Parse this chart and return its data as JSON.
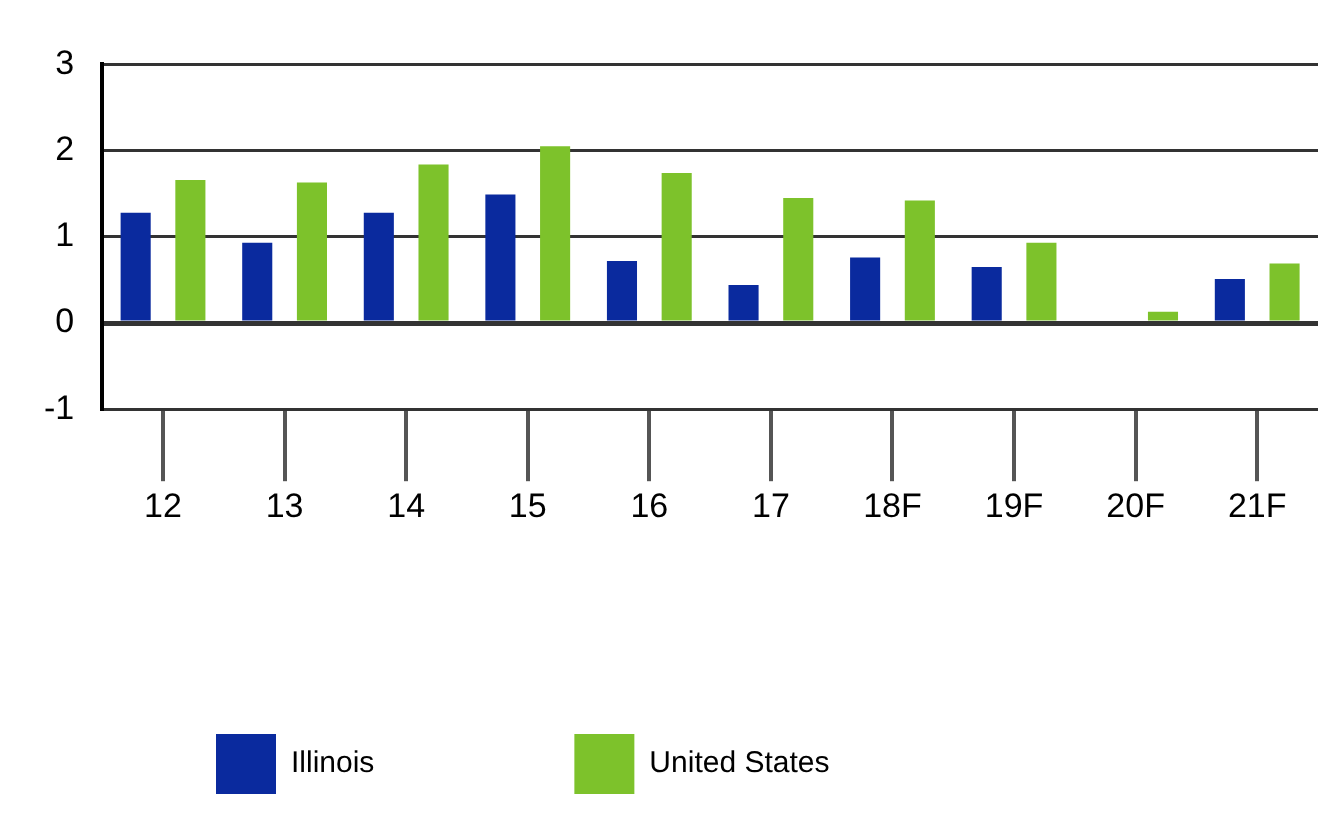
{
  "chart_data": {
    "type": "bar",
    "categories": [
      "12",
      "13",
      "14",
      "15",
      "16",
      "17",
      "18F",
      "19F",
      "20F",
      "21F"
    ],
    "series": [
      {
        "name": "Illinois",
        "color": "#0a2a9e",
        "values": [
          1.28,
          0.93,
          1.28,
          1.49,
          0.72,
          0.44,
          0.76,
          0.65,
          0.03,
          0.51
        ]
      },
      {
        "name": "United States",
        "color": "#7dc22b",
        "values": [
          1.66,
          1.63,
          1.84,
          2.05,
          1.74,
          1.45,
          1.42,
          0.93,
          0.13,
          0.69
        ]
      }
    ],
    "ylim": [
      -1,
      3
    ],
    "yticks": [
      -1,
      0,
      1,
      2,
      3
    ],
    "grid": "y",
    "legend": "bottom"
  }
}
